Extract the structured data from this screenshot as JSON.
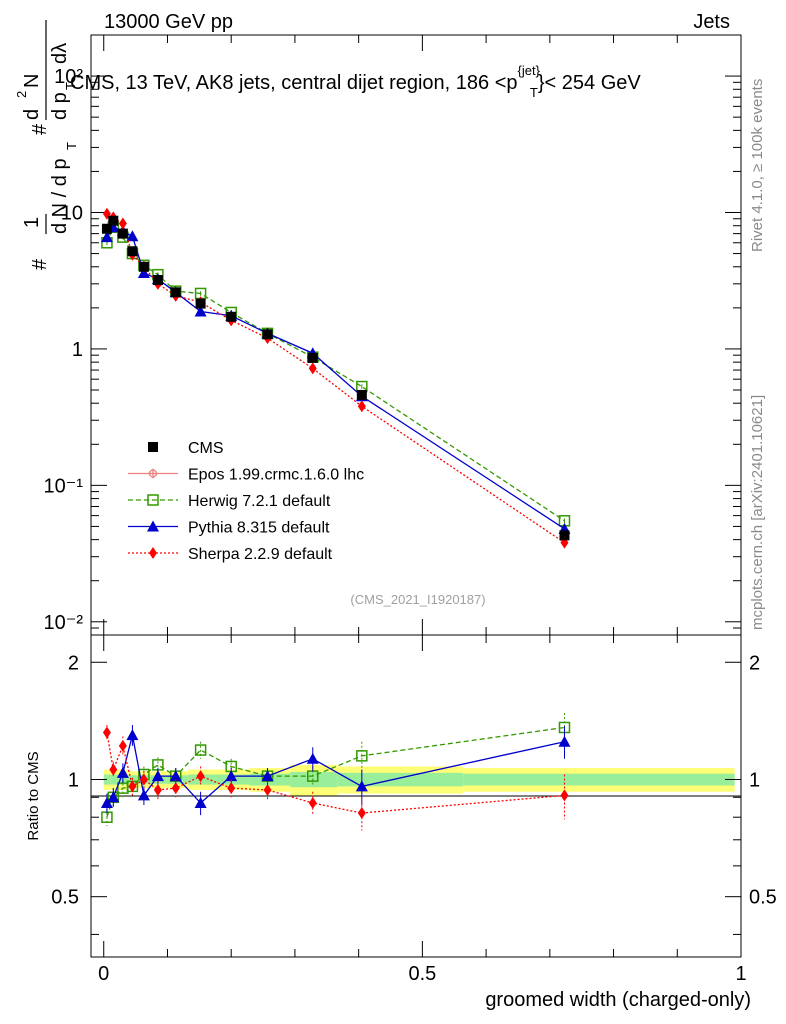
{
  "header": {
    "energy_label": "13000 GeV pp",
    "category_label": "Jets"
  },
  "side_labels": {
    "rivet": "Rivet 4.1.0, ≥ 100k events",
    "mcplots": "mcplots.cern.ch [arXiv:2401.10621]"
  },
  "chart_data": [
    {
      "type": "line",
      "panel": "main",
      "title": "CMS, 13 TeV, AK8 jets, central dijet region, 186 <p",
      "title_sup": "{jet}",
      "title_sub": "T",
      "title_tail": "}< 254 GeV",
      "ylabel_parts": [
        "#",
        "1",
        "d N / d p",
        "T",
        "#",
        "d",
        "N",
        "d p",
        "T",
        "dλ",
        "2"
      ],
      "xlabel": "groomed width (charged-only)",
      "yscale": "log",
      "xlim": [
        -0.02,
        1.0
      ],
      "ylim": [
        0.008,
        200
      ],
      "ytick_labels": [
        "10⁻²",
        "10⁻¹",
        "1",
        "10",
        "10²"
      ],
      "ytick_values": [
        0.01,
        0.1,
        1,
        10,
        100
      ],
      "watermark": "(CMS_2021_I1920187)",
      "series": [
        {
          "name": "CMS",
          "color": "#000000",
          "marker": "square",
          "x": [
            0.005,
            0.015,
            0.03,
            0.045,
            0.063,
            0.085,
            0.113,
            0.152,
            0.2,
            0.257,
            0.328,
            0.405,
            0.723
          ],
          "y": [
            7.6,
            8.7,
            7.0,
            5.2,
            4.0,
            3.2,
            2.6,
            2.15,
            1.72,
            1.28,
            0.86,
            0.46,
            0.043
          ]
        },
        {
          "name": "Epos 1.99.crmc.1.6.0 lhc",
          "color": "#f08080",
          "marker": "plus",
          "x": [],
          "y": []
        },
        {
          "name": "Herwig 7.2.1 default",
          "color": "#339900",
          "marker": "open-square",
          "x": [
            0.005,
            0.015,
            0.03,
            0.045,
            0.063,
            0.085,
            0.113,
            0.152,
            0.2,
            0.257,
            0.328,
            0.405,
            0.723
          ],
          "y": [
            6.0,
            7.8,
            6.6,
            5.0,
            4.1,
            3.5,
            2.65,
            2.55,
            1.85,
            1.3,
            0.87,
            0.53,
            0.055
          ]
        },
        {
          "name": "Pythia 8.315 default",
          "color": "#0000cc",
          "marker": "triangle",
          "x": [
            0.005,
            0.015,
            0.03,
            0.045,
            0.063,
            0.085,
            0.113,
            0.152,
            0.2,
            0.257,
            0.328,
            0.405,
            0.723
          ],
          "y": [
            6.6,
            7.8,
            7.3,
            6.7,
            3.6,
            3.25,
            2.6,
            1.88,
            1.75,
            1.3,
            0.93,
            0.45,
            0.048
          ]
        },
        {
          "name": "Sherpa 2.2.9 default",
          "color": "#ff0000",
          "marker": "diamond",
          "x": [
            0.005,
            0.015,
            0.03,
            0.045,
            0.063,
            0.085,
            0.113,
            0.152,
            0.2,
            0.257,
            0.328,
            0.405,
            0.723
          ],
          "y": [
            9.8,
            9.2,
            8.3,
            4.9,
            4.0,
            3.0,
            2.45,
            2.2,
            1.62,
            1.2,
            0.72,
            0.38,
            0.038
          ]
        }
      ]
    },
    {
      "type": "line",
      "panel": "ratio",
      "ylabel": "Ratio to CMS",
      "xlabel": "groomed width (charged-only)",
      "xlim": [
        -0.02,
        1.0
      ],
      "ylim": [
        0.35,
        2.35
      ],
      "ytick_labels": [
        "0.5",
        "1",
        "2"
      ],
      "ytick_values": [
        0.5,
        1,
        2
      ],
      "xtick_labels": [
        "0",
        "0.5",
        "1"
      ],
      "xtick_values": [
        0,
        0.5,
        1
      ],
      "series": [
        {
          "name": "Herwig 7.2.1 default",
          "color": "#339900",
          "x": [
            0.005,
            0.015,
            0.03,
            0.045,
            0.063,
            0.085,
            0.113,
            0.152,
            0.2,
            0.257,
            0.328,
            0.405,
            0.723
          ],
          "y": [
            0.8,
            0.9,
            0.95,
            0.96,
            1.03,
            1.09,
            1.02,
            1.19,
            1.08,
            1.02,
            1.02,
            1.15,
            1.36
          ],
          "err": [
            0.04,
            0.05,
            0.05,
            0.05,
            0.05,
            0.05,
            0.05,
            0.06,
            0.05,
            0.05,
            0.06,
            0.1,
            0.12
          ]
        },
        {
          "name": "Pythia 8.315 default",
          "color": "#0000cc",
          "x": [
            0.005,
            0.015,
            0.03,
            0.045,
            0.063,
            0.085,
            0.113,
            0.152,
            0.2,
            0.257,
            0.328,
            0.405,
            0.723
          ],
          "y": [
            0.87,
            0.9,
            1.04,
            1.3,
            0.91,
            1.02,
            1.02,
            0.87,
            1.02,
            1.02,
            1.13,
            0.96,
            1.25
          ],
          "err": [
            0.05,
            0.05,
            0.06,
            0.08,
            0.05,
            0.05,
            0.05,
            0.06,
            0.05,
            0.05,
            0.08,
            0.1,
            0.12
          ]
        },
        {
          "name": "Sherpa 2.2.9 default",
          "color": "#ff0000",
          "x": [
            0.005,
            0.015,
            0.03,
            0.045,
            0.063,
            0.085,
            0.113,
            0.152,
            0.2,
            0.257,
            0.328,
            0.405,
            0.723
          ],
          "y": [
            1.32,
            1.06,
            1.22,
            0.96,
            1.0,
            0.94,
            0.95,
            1.02,
            0.95,
            0.94,
            0.87,
            0.82,
            0.91
          ],
          "err": [
            0.06,
            0.05,
            0.07,
            0.05,
            0.05,
            0.05,
            0.05,
            0.06,
            0.05,
            0.05,
            0.06,
            0.08,
            0.12
          ]
        }
      ]
    }
  ]
}
